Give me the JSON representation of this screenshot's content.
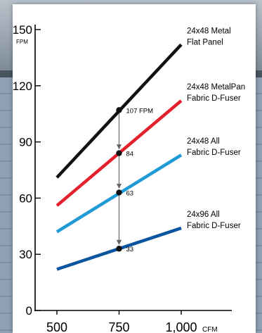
{
  "chart_data": {
    "type": "line",
    "x_unit": "CFM",
    "y_unit": "FPM",
    "x_ticks": [
      "500",
      "750",
      "1,000"
    ],
    "y_ticks": [
      "0",
      "30",
      "60",
      "90",
      "120",
      "150"
    ],
    "xlim": [
      500,
      1000
    ],
    "ylim": [
      0,
      150
    ],
    "series": [
      {
        "name": "24x48 Metal Flat Panel",
        "label_lines": [
          "24x48 Metal",
          "Flat Panel"
        ],
        "color": "#111111",
        "x": [
          500,
          1000
        ],
        "y": [
          71,
          142
        ]
      },
      {
        "name": "24x48 MetalPan Fabric D-Fuser",
        "label_lines": [
          "24x48 MetalPan",
          "Fabric D-Fuser"
        ],
        "color": "#e4202c",
        "x": [
          500,
          1000
        ],
        "y": [
          56,
          112
        ]
      },
      {
        "name": "24x48 All Fabric D-Fuser",
        "label_lines": [
          "24x48 All",
          "Fabric D-Fuser"
        ],
        "color": "#1f9ad6",
        "x": [
          500,
          1000
        ],
        "y": [
          42,
          83
        ]
      },
      {
        "name": "24x96 All Fabric D-Fuser",
        "label_lines": [
          "24x96 All",
          "Fabric D-Fuser"
        ],
        "color": "#0a55a0",
        "x": [
          500,
          1000
        ],
        "y": [
          22,
          44
        ]
      }
    ],
    "annotations": [
      {
        "x": 750,
        "y": 107,
        "label": "107 FPM"
      },
      {
        "x": 750,
        "y": 84,
        "label": "84"
      },
      {
        "x": 750,
        "y": 63,
        "label": "63"
      },
      {
        "x": 750,
        "y": 33,
        "label": "33"
      }
    ],
    "grid": false
  }
}
